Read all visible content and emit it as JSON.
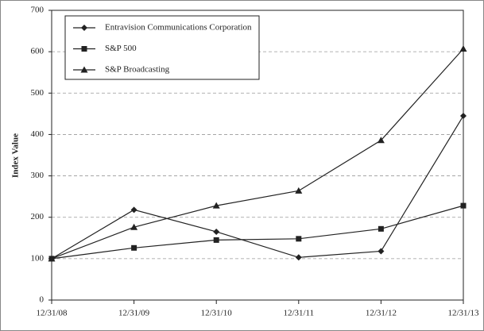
{
  "chart_data": {
    "type": "line",
    "y_label": "Index Value",
    "categories": [
      "12/31/08",
      "12/31/09",
      "12/31/10",
      "12/31/11",
      "12/31/12",
      "12/31/13"
    ],
    "series": [
      {
        "name": "Entravision Communications Corporation",
        "color": "#222222",
        "marker": "diamond",
        "values": [
          100,
          218,
          165,
          103,
          118,
          445
        ]
      },
      {
        "name": "S&P 500",
        "color": "#222222",
        "marker": "square",
        "values": [
          100,
          126,
          145,
          148,
          172,
          228
        ]
      },
      {
        "name": "S&P Broadcasting",
        "color": "#222222",
        "marker": "triangle",
        "values": [
          100,
          176,
          228,
          264,
          386,
          607
        ]
      }
    ],
    "ylim": [
      0,
      700
    ],
    "yticks": [
      0,
      100,
      200,
      300,
      400,
      500,
      600,
      700
    ],
    "grid": true
  }
}
